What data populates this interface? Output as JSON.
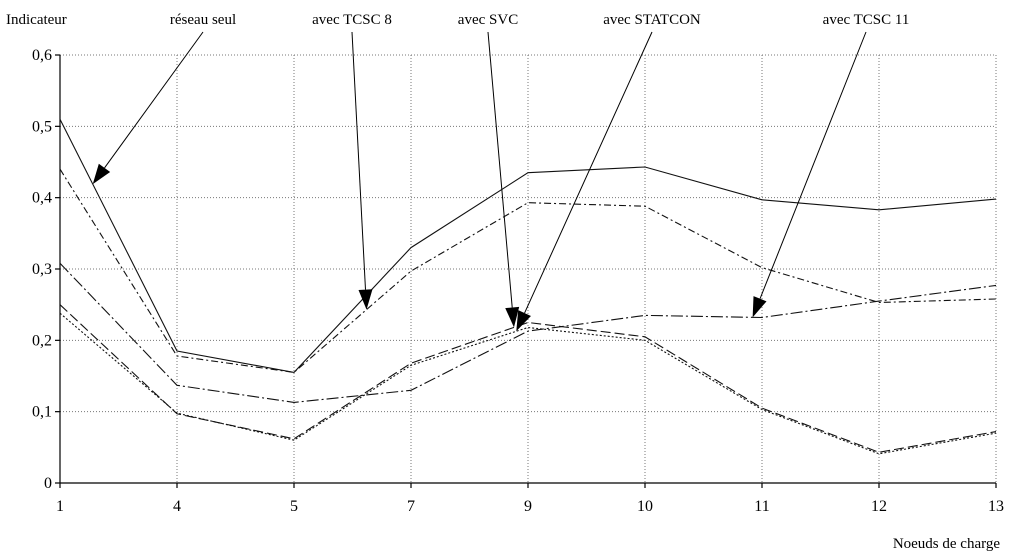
{
  "chart_data": {
    "type": "line",
    "ylabel": "Indicateur",
    "xlabel": "Noeuds de charge",
    "categories": [
      "1",
      "4",
      "5",
      "7",
      "9",
      "10",
      "11",
      "12",
      "13"
    ],
    "ylim": [
      0,
      0.6
    ],
    "yticks": [
      "0",
      "0,1",
      "0,2",
      "0,3",
      "0,4",
      "0,5",
      "0,6"
    ],
    "grid": true,
    "series": [
      {
        "name": "réseau seul",
        "values": [
          0.51,
          0.185,
          0.155,
          0.33,
          0.435,
          0.443,
          0.397,
          0.383,
          0.398
        ],
        "dash": ""
      },
      {
        "name": "avec TCSC 8",
        "values": [
          0.44,
          0.178,
          0.155,
          0.297,
          0.393,
          0.388,
          0.302,
          0.253,
          0.258
        ],
        "dash": "7 3 2 3"
      },
      {
        "name": "avec SVC",
        "values": [
          0.25,
          0.097,
          0.062,
          0.168,
          0.225,
          0.205,
          0.105,
          0.043,
          0.072
        ],
        "dash": "10 4"
      },
      {
        "name": "avec STATCON",
        "values": [
          0.238,
          0.098,
          0.06,
          0.165,
          0.218,
          0.2,
          0.103,
          0.041,
          0.07
        ],
        "dash": "2 2"
      },
      {
        "name": "avec TCSC 11",
        "values": [
          0.308,
          0.137,
          0.113,
          0.13,
          0.213,
          0.235,
          0.232,
          0.255,
          0.277
        ],
        "dash": "12 3 2 3"
      }
    ]
  }
}
